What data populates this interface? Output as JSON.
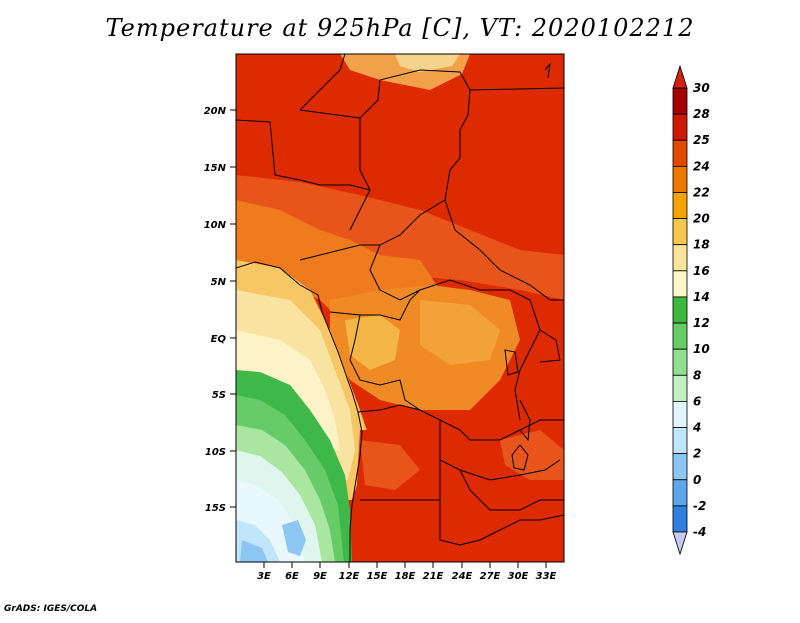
{
  "title": "Temperature at 925hPa [C], VT: 2020102212",
  "credit": "GrADS: IGES/COLA",
  "map": {
    "lat_labels": [
      "20N",
      "15N",
      "10N",
      "5N",
      "EQ",
      "5S",
      "10S",
      "15S"
    ],
    "lon_labels": [
      "3E",
      "6E",
      "9E",
      "12E",
      "15E",
      "18E",
      "21E",
      "24E",
      "27E",
      "30E",
      "33E"
    ]
  },
  "colorbar": {
    "levels": [
      "30",
      "28",
      "25",
      "24",
      "22",
      "20",
      "18",
      "16",
      "14",
      "12",
      "10",
      "8",
      "6",
      "4",
      "2",
      "0",
      "-2",
      "-4"
    ],
    "colors": [
      "#a50000",
      "#cc1a00",
      "#e04a00",
      "#ee7700",
      "#f5a300",
      "#f7c84f",
      "#f9e49a",
      "#fbf6c9",
      "#3eb83e",
      "#66cc66",
      "#8fdf8f",
      "#c2f0c2",
      "#dff6ff",
      "#bfe6fb",
      "#8cc6f3",
      "#5da6ea",
      "#2f7fde",
      "#0f50c2",
      "#07358f",
      "#0b1a66"
    ],
    "max_color": "#d52010",
    "min_color": "#c8c8f0"
  }
}
